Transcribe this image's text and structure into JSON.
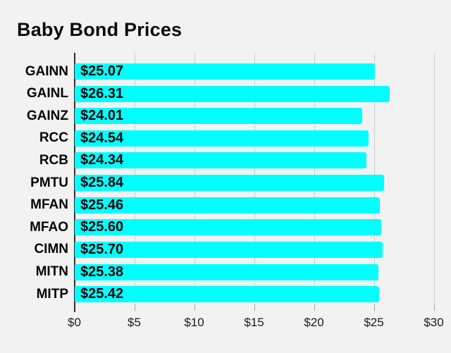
{
  "page": {
    "background_color": "#f2f2f2"
  },
  "chart_data": {
    "type": "bar",
    "orientation": "horizontal",
    "title": "Baby Bond Prices",
    "categories": [
      "GAINN",
      "GAINL",
      "GAINZ",
      "RCC",
      "RCB",
      "PMTU",
      "MFAN",
      "MFAO",
      "CIMN",
      "MITN",
      "MITP"
    ],
    "values": [
      25.07,
      26.31,
      24.01,
      24.54,
      24.34,
      25.84,
      25.46,
      25.6,
      25.7,
      25.38,
      25.42
    ],
    "value_labels": [
      "$25.07",
      "$26.31",
      "$24.01",
      "$24.54",
      "$24.34",
      "$25.84",
      "$25.46",
      "$25.60",
      "$25.70",
      "$25.38",
      "$25.42"
    ],
    "xlabel": "",
    "ylabel": "",
    "xlim": [
      0,
      30
    ],
    "xticks": [
      0,
      5,
      10,
      15,
      20,
      25,
      30
    ],
    "xtick_labels": [
      "$0",
      "$5",
      "$10",
      "$15",
      "$20",
      "$25",
      "$30"
    ],
    "grid": true,
    "legend": false,
    "colors": {
      "bar": "#00ffff",
      "gridline": "#cccccc",
      "baseline": "#2f2f2f",
      "tick": "#a3a3a3",
      "title_text": "#0c0c0c",
      "label_text": "#050505",
      "tick_label_text": "#1b1b1b",
      "value_text": "#000000"
    }
  }
}
